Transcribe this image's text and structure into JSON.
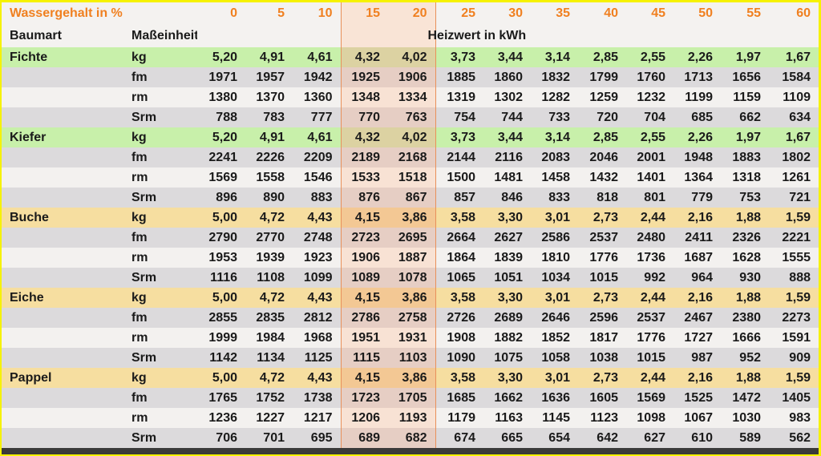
{
  "header": {
    "title": "Wassergehalt in %",
    "species_label": "Baumart",
    "unit_label": "Maßeinheit",
    "value_label": "Heizwert in kWh",
    "moisture_levels": [
      "0",
      "5",
      "10",
      "15",
      "20",
      "25",
      "30",
      "35",
      "40",
      "45",
      "50",
      "55",
      "60"
    ]
  },
  "colors": {
    "header_text": "#f08020",
    "conifer_row": "#c8f0aa",
    "deciduous_row": "#f6dea0",
    "highlight_band": "#f8e2d4",
    "highlight_border": "#e8905a",
    "frame": "#f6f200"
  },
  "chart_data": {
    "type": "table",
    "highlighted_moisture": [
      "15",
      "20"
    ],
    "columns": [
      "0",
      "5",
      "10",
      "15",
      "20",
      "25",
      "30",
      "35",
      "40",
      "45",
      "50",
      "55",
      "60"
    ],
    "species": [
      {
        "name": "Fichte",
        "accent": "green",
        "rows": [
          {
            "unit": "kg",
            "values": [
              "5,20",
              "4,91",
              "4,61",
              "4,32",
              "4,02",
              "3,73",
              "3,44",
              "3,14",
              "2,85",
              "2,55",
              "2,26",
              "1,97",
              "1,67"
            ]
          },
          {
            "unit": "fm",
            "values": [
              "1971",
              "1957",
              "1942",
              "1925",
              "1906",
              "1885",
              "1860",
              "1832",
              "1799",
              "1760",
              "1713",
              "1656",
              "1584"
            ]
          },
          {
            "unit": "rm",
            "values": [
              "1380",
              "1370",
              "1360",
              "1348",
              "1334",
              "1319",
              "1302",
              "1282",
              "1259",
              "1232",
              "1199",
              "1159",
              "1109"
            ]
          },
          {
            "unit": "Srm",
            "values": [
              "788",
              "783",
              "777",
              "770",
              "763",
              "754",
              "744",
              "733",
              "720",
              "704",
              "685",
              "662",
              "634"
            ]
          }
        ]
      },
      {
        "name": "Kiefer",
        "accent": "green",
        "rows": [
          {
            "unit": "kg",
            "values": [
              "5,20",
              "4,91",
              "4,61",
              "4,32",
              "4,02",
              "3,73",
              "3,44",
              "3,14",
              "2,85",
              "2,55",
              "2,26",
              "1,97",
              "1,67"
            ]
          },
          {
            "unit": "fm",
            "values": [
              "2241",
              "2226",
              "2209",
              "2189",
              "2168",
              "2144",
              "2116",
              "2083",
              "2046",
              "2001",
              "1948",
              "1883",
              "1802"
            ]
          },
          {
            "unit": "rm",
            "values": [
              "1569",
              "1558",
              "1546",
              "1533",
              "1518",
              "1500",
              "1481",
              "1458",
              "1432",
              "1401",
              "1364",
              "1318",
              "1261"
            ]
          },
          {
            "unit": "Srm",
            "values": [
              "896",
              "890",
              "883",
              "876",
              "867",
              "857",
              "846",
              "833",
              "818",
              "801",
              "779",
              "753",
              "721"
            ]
          }
        ]
      },
      {
        "name": "Buche",
        "accent": "yellow",
        "rows": [
          {
            "unit": "kg",
            "values": [
              "5,00",
              "4,72",
              "4,43",
              "4,15",
              "3,86",
              "3,58",
              "3,30",
              "3,01",
              "2,73",
              "2,44",
              "2,16",
              "1,88",
              "1,59"
            ]
          },
          {
            "unit": "fm",
            "values": [
              "2790",
              "2770",
              "2748",
              "2723",
              "2695",
              "2664",
              "2627",
              "2586",
              "2537",
              "2480",
              "2411",
              "2326",
              "2221"
            ]
          },
          {
            "unit": "rm",
            "values": [
              "1953",
              "1939",
              "1923",
              "1906",
              "1887",
              "1864",
              "1839",
              "1810",
              "1776",
              "1736",
              "1687",
              "1628",
              "1555"
            ]
          },
          {
            "unit": "Srm",
            "values": [
              "1116",
              "1108",
              "1099",
              "1089",
              "1078",
              "1065",
              "1051",
              "1034",
              "1015",
              "992",
              "964",
              "930",
              "888"
            ]
          }
        ]
      },
      {
        "name": "Eiche",
        "accent": "yellow",
        "rows": [
          {
            "unit": "kg",
            "values": [
              "5,00",
              "4,72",
              "4,43",
              "4,15",
              "3,86",
              "3,58",
              "3,30",
              "3,01",
              "2,73",
              "2,44",
              "2,16",
              "1,88",
              "1,59"
            ]
          },
          {
            "unit": "fm",
            "values": [
              "2855",
              "2835",
              "2812",
              "2786",
              "2758",
              "2726",
              "2689",
              "2646",
              "2596",
              "2537",
              "2467",
              "2380",
              "2273"
            ]
          },
          {
            "unit": "rm",
            "values": [
              "1999",
              "1984",
              "1968",
              "1951",
              "1931",
              "1908",
              "1882",
              "1852",
              "1817",
              "1776",
              "1727",
              "1666",
              "1591"
            ]
          },
          {
            "unit": "Srm",
            "values": [
              "1142",
              "1134",
              "1125",
              "1115",
              "1103",
              "1090",
              "1075",
              "1058",
              "1038",
              "1015",
              "987",
              "952",
              "909"
            ]
          }
        ]
      },
      {
        "name": "Pappel",
        "accent": "yellow",
        "rows": [
          {
            "unit": "kg",
            "values": [
              "5,00",
              "4,72",
              "4,43",
              "4,15",
              "3,86",
              "3,58",
              "3,30",
              "3,01",
              "2,73",
              "2,44",
              "2,16",
              "1,88",
              "1,59"
            ]
          },
          {
            "unit": "fm",
            "values": [
              "1765",
              "1752",
              "1738",
              "1723",
              "1705",
              "1685",
              "1662",
              "1636",
              "1605",
              "1569",
              "1525",
              "1472",
              "1405"
            ]
          },
          {
            "unit": "rm",
            "values": [
              "1236",
              "1227",
              "1217",
              "1206",
              "1193",
              "1179",
              "1163",
              "1145",
              "1123",
              "1098",
              "1067",
              "1030",
              "983"
            ]
          },
          {
            "unit": "Srm",
            "values": [
              "706",
              "701",
              "695",
              "689",
              "682",
              "674",
              "665",
              "654",
              "642",
              "627",
              "610",
              "589",
              "562"
            ]
          }
        ]
      }
    ]
  }
}
